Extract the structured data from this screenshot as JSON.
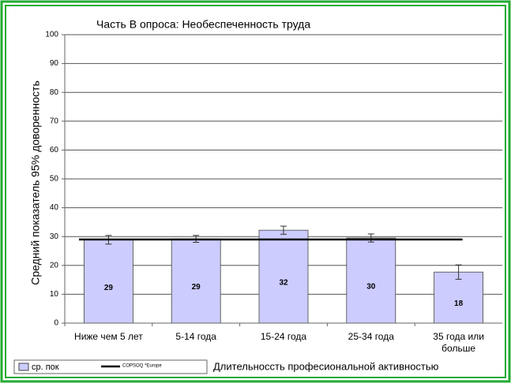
{
  "chart_data": {
    "type": "bar",
    "title": "Часть В опроса: Необеспеченность труда",
    "y_label": "Средний показатель 95% доворенность",
    "x_label": "Длительносcть професиональной активностью",
    "categories": [
      "Ниже чем 5 лет",
      "5-14 года",
      "15-24 года",
      "25-34 года",
      "35 года или больше"
    ],
    "series": [
      {
        "name": "ср. пок",
        "color": "#ccccff",
        "values": [
          28.9,
          29.2,
          32.2,
          29.5,
          17.7
        ],
        "value_labels": [
          "29",
          "29",
          "32",
          "30",
          "18"
        ],
        "errors": [
          1.5,
          1.2,
          1.4,
          1.4,
          2.5
        ]
      }
    ],
    "reference": {
      "name": "COPSOQ *Europe",
      "value": 29,
      "color": "#000000"
    },
    "ylim": [
      0,
      100
    ],
    "yticks": [
      0,
      10,
      20,
      30,
      40,
      50,
      60,
      70,
      80,
      90,
      100
    ],
    "grid": true
  }
}
